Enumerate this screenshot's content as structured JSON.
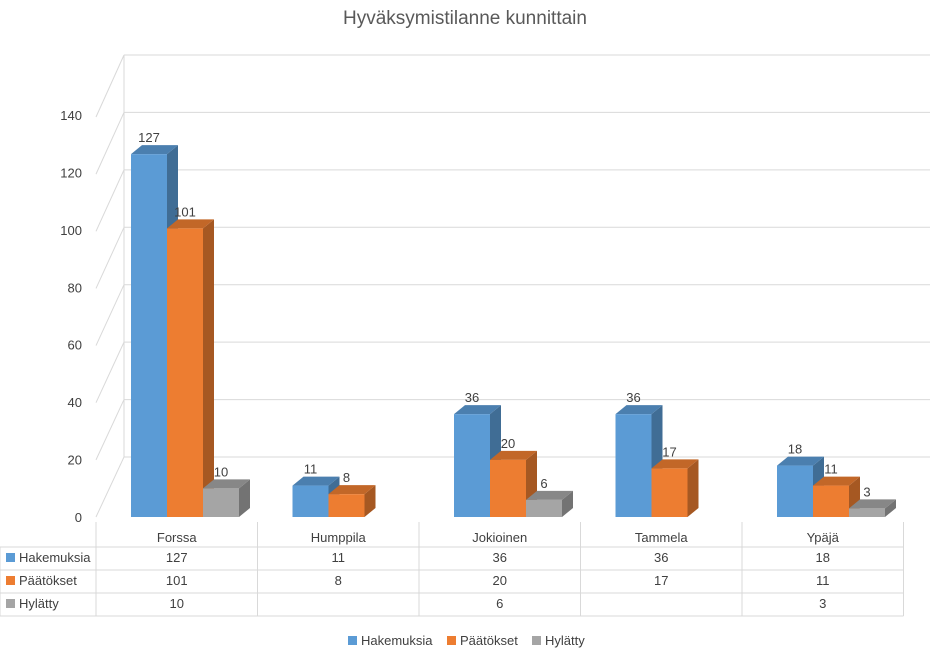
{
  "chart_data": {
    "type": "bar",
    "title": "Hyväksymistilanne kunnittain",
    "categories": [
      "Forssa",
      "Humppila",
      "Jokioinen",
      "Tammela",
      "Ypäjä"
    ],
    "series": [
      {
        "name": "Hakemuksia",
        "values": [
          127,
          11,
          36,
          36,
          18
        ],
        "color": "#5B9BD5"
      },
      {
        "name": "Päätökset",
        "values": [
          101,
          8,
          20,
          17,
          11
        ],
        "color": "#ED7D31"
      },
      {
        "name": "Hylätty",
        "values": [
          10,
          null,
          6,
          null,
          3
        ],
        "color": "#A5A5A5"
      }
    ],
    "ylim": [
      0,
      140
    ],
    "yticks": [
      0,
      20,
      40,
      60,
      80,
      100,
      120,
      140
    ],
    "grid": true,
    "legend": "bottom",
    "data_table": true,
    "style": "3d-clustered-column"
  }
}
